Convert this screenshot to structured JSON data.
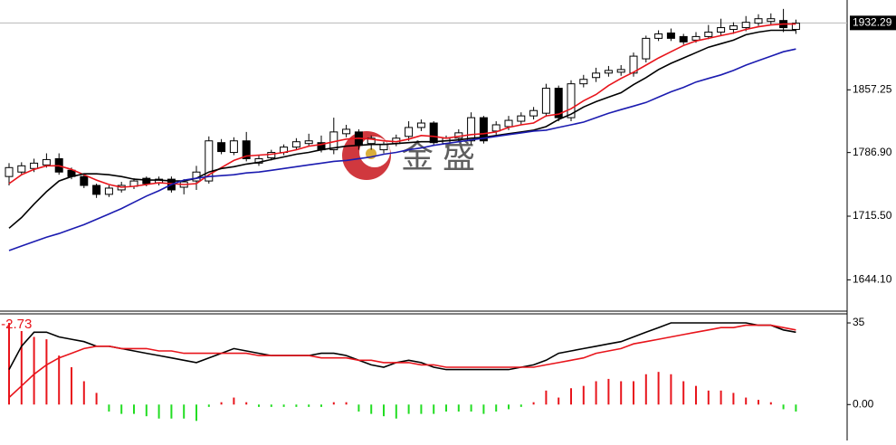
{
  "chart_data": [
    {
      "type": "candlestick",
      "watermark": "金 盛",
      "last_price": 1932.29,
      "ylim": [
        1610,
        1958
      ],
      "yticks": [
        {
          "value": 1644.1,
          "label": "1644.10"
        },
        {
          "value": 1715.5,
          "label": "1715.50"
        },
        {
          "value": 1786.9,
          "label": "1786.90"
        },
        1857.25
      ],
      "up_color": "#ffffff",
      "down_color": "#000000",
      "open": [
        1760,
        1765,
        1769,
        1773,
        1780,
        1767,
        1760,
        1750,
        1740,
        1745,
        1749,
        1758,
        1753,
        1757,
        1748,
        1755,
        1755,
        1798,
        1787,
        1800,
        1775,
        1781,
        1787,
        1793,
        1797,
        1798,
        1790,
        1808,
        1810,
        1797,
        1790,
        1797,
        1805,
        1815,
        1820,
        1797,
        1803,
        1800,
        1826,
        1811,
        1816,
        1822,
        1828,
        1831,
        1859,
        1826,
        1864,
        1871,
        1876,
        1877,
        1876,
        1892,
        1915,
        1921,
        1917,
        1913,
        1917,
        1922,
        1925,
        1927,
        1932,
        1934,
        1935,
        1925
      ],
      "high": [
        1775,
        1776,
        1780,
        1786,
        1786,
        1770,
        1763,
        1752,
        1750,
        1754,
        1758,
        1760,
        1760,
        1760,
        1757,
        1772,
        1805,
        1802,
        1804,
        1810,
        1784,
        1790,
        1796,
        1803,
        1808,
        1806,
        1826,
        1818,
        1813,
        1806,
        1799,
        1807,
        1822,
        1824,
        1822,
        1806,
        1813,
        1832,
        1828,
        1822,
        1828,
        1832,
        1838,
        1864,
        1862,
        1868,
        1874,
        1882,
        1884,
        1885,
        1899,
        1918,
        1924,
        1926,
        1920,
        1922,
        1930,
        1937,
        1933,
        1940,
        1942,
        1943,
        1948,
        1936
      ],
      "low": [
        1750,
        1762,
        1765,
        1770,
        1762,
        1757,
        1747,
        1736,
        1737,
        1742,
        1746,
        1749,
        1750,
        1742,
        1740,
        1745,
        1752,
        1785,
        1784,
        1777,
        1772,
        1778,
        1784,
        1790,
        1794,
        1787,
        1785,
        1804,
        1790,
        1790,
        1786,
        1794,
        1800,
        1811,
        1795,
        1792,
        1799,
        1796,
        1797,
        1807,
        1812,
        1818,
        1824,
        1827,
        1822,
        1822,
        1860,
        1866,
        1872,
        1873,
        1872,
        1888,
        1912,
        1912,
        1908,
        1910,
        1914,
        1918,
        1920,
        1923,
        1929,
        1930,
        1922,
        1920
      ],
      "close": [
        1770,
        1772,
        1775,
        1779,
        1765,
        1760,
        1750,
        1740,
        1747,
        1750,
        1755,
        1752,
        1757,
        1745,
        1754,
        1765,
        1800,
        1788,
        1800,
        1780,
        1780,
        1787,
        1793,
        1799,
        1800,
        1790,
        1810,
        1813,
        1795,
        1803,
        1796,
        1803,
        1815,
        1820,
        1798,
        1803,
        1809,
        1826,
        1800,
        1818,
        1823,
        1828,
        1834,
        1859,
        1826,
        1864,
        1869,
        1876,
        1879,
        1880,
        1895,
        1915,
        1920,
        1915,
        1911,
        1917,
        1922,
        1927,
        1929,
        1933,
        1937,
        1937,
        1927,
        1932
      ],
      "series": [
        {
          "color": "#e8141b",
          "values": [
            1752,
            1762,
            1768,
            1772,
            1772,
            1768,
            1762,
            1756,
            1751,
            1748,
            1749,
            1751,
            1753,
            1752,
            1751,
            1752,
            1762,
            1770,
            1778,
            1783,
            1784,
            1785,
            1787,
            1790,
            1794,
            1796,
            1799,
            1802,
            1803,
            1802,
            1800,
            1799,
            1802,
            1806,
            1805,
            1803,
            1805,
            1807,
            1808,
            1810,
            1815,
            1818,
            1820,
            1828,
            1830,
            1836,
            1845,
            1852,
            1862,
            1870,
            1877,
            1885,
            1893,
            1900,
            1907,
            1912,
            1915,
            1918,
            1921,
            1925,
            1928,
            1930,
            1931,
            1931
          ]
        },
        {
          "color": "#000000",
          "values": [
            1702,
            1714,
            1729,
            1743,
            1755,
            1760,
            1763,
            1763,
            1762,
            1760,
            1757,
            1756,
            1756,
            1755,
            1755,
            1758,
            1765,
            1769,
            1771,
            1774,
            1776,
            1779,
            1782,
            1785,
            1787,
            1790,
            1792,
            1794,
            1795,
            1796,
            1796,
            1797,
            1798,
            1799,
            1799,
            1800,
            1801,
            1803,
            1804,
            1806,
            1808,
            1810,
            1812,
            1816,
            1824,
            1830,
            1838,
            1844,
            1849,
            1854,
            1863,
            1871,
            1880,
            1887,
            1893,
            1899,
            1905,
            1909,
            1913,
            1919,
            1922,
            1924,
            1924,
            1924
          ]
        },
        {
          "color": "#1b1bb0",
          "values": [
            1677,
            1682,
            1687,
            1692,
            1696,
            1701,
            1706,
            1712,
            1718,
            1724,
            1731,
            1738,
            1744,
            1751,
            1756,
            1758,
            1760,
            1761,
            1762,
            1764,
            1765,
            1767,
            1769,
            1771,
            1773,
            1775,
            1777,
            1778,
            1780,
            1782,
            1785,
            1787,
            1790,
            1792,
            1795,
            1797,
            1799,
            1801,
            1803,
            1805,
            1807,
            1809,
            1811,
            1812,
            1815,
            1818,
            1821,
            1826,
            1831,
            1835,
            1839,
            1843,
            1849,
            1855,
            1860,
            1866,
            1870,
            1874,
            1879,
            1885,
            1890,
            1895,
            1900,
            1903
          ]
        }
      ]
    },
    {
      "type": "macd",
      "indicator_label": ":-2.73",
      "ylim": [
        -15.4,
        38.5
      ],
      "yticks": [
        35,
        {
          "value": 0,
          "label": "0.00"
        }
      ],
      "pos_color": "#e8141b",
      "neg_color": "#22dd22",
      "histogram": [
        35,
        31.5,
        29,
        28,
        21,
        16,
        10,
        5,
        -3,
        -4,
        -4,
        -5,
        -6,
        -6,
        -6,
        -7,
        -1,
        1,
        3,
        1,
        -1,
        -1,
        -1,
        -1,
        -1,
        -1,
        1,
        1,
        -3,
        -4,
        -5,
        -6,
        -4,
        -4,
        -4,
        -3,
        -3,
        -3,
        -4,
        -3,
        -2,
        -1,
        1,
        6,
        3,
        7,
        8,
        10,
        11,
        10,
        10,
        13,
        14,
        13,
        10,
        8,
        6,
        6,
        5,
        3,
        2,
        1,
        -2,
        -3
      ],
      "series": [
        {
          "color": "#000000",
          "values": [
            15,
            25,
            31,
            31,
            29,
            28,
            27,
            25,
            25,
            24,
            23,
            22,
            21,
            20,
            19,
            18,
            20,
            22,
            24,
            23,
            22,
            21,
            21,
            21,
            21,
            22,
            22,
            21,
            19,
            17,
            16,
            18,
            19,
            18,
            16,
            15,
            15,
            15,
            15,
            15,
            15,
            16,
            17,
            19,
            22,
            23,
            24,
            25,
            26,
            27,
            29,
            31,
            33,
            35,
            35,
            35,
            35,
            35,
            35,
            35,
            34,
            34,
            32,
            31
          ]
        },
        {
          "color": "#e8141b",
          "values": [
            3,
            8,
            13,
            17,
            20,
            22,
            24,
            25,
            25,
            24,
            24,
            24,
            23,
            23,
            22,
            22,
            22,
            22,
            22,
            22,
            21,
            21,
            21,
            21,
            21,
            20,
            20,
            20,
            19,
            19,
            18,
            18,
            18,
            17,
            17,
            16,
            16,
            16,
            16,
            16,
            16,
            16,
            16,
            17,
            18,
            19,
            20,
            22,
            23,
            24,
            26,
            27,
            28,
            29,
            30,
            31,
            32,
            33,
            33,
            34,
            34,
            34,
            33,
            32
          ]
        }
      ]
    }
  ]
}
